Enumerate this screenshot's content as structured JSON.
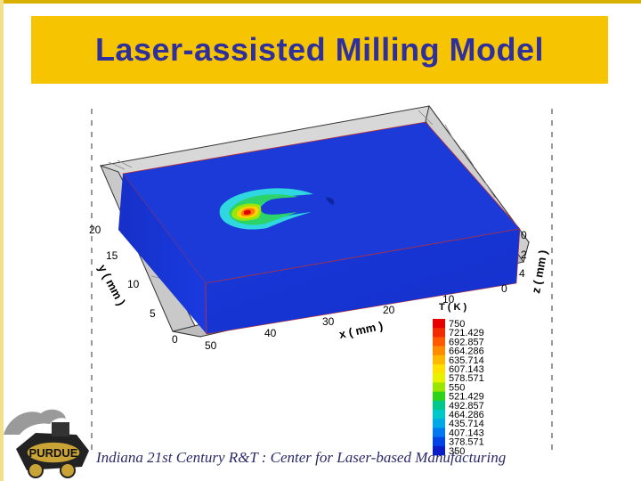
{
  "slide": {
    "title": "Laser-assisted Milling Model",
    "footer": "Indiana 21st Century R&T : Center for Laser-based Manufacturing"
  },
  "logo": {
    "text": "PURDUE",
    "icon": "purdue-train-logo"
  },
  "chart_data": {
    "type": "3d-contour",
    "x_axis": {
      "label": "x ( mm )",
      "ticks": [
        "50",
        "40",
        "30",
        "20",
        "10",
        "0"
      ]
    },
    "y_axis": {
      "label": "y ( mm )",
      "ticks": [
        "0",
        "5",
        "10",
        "15",
        "20"
      ]
    },
    "z_axis": {
      "label": "z ( mm )",
      "ticks": [
        "0",
        "2",
        "4"
      ]
    },
    "legend": {
      "title": "T ( K )",
      "levels": [
        "750",
        "721.429",
        "692.857",
        "664.286",
        "635.714",
        "607.143",
        "578.571",
        "550",
        "521.429",
        "492.857",
        "464.286",
        "435.714",
        "407.143",
        "378.571",
        "350"
      ],
      "colors": [
        "#e60000",
        "#f22c00",
        "#ff5a00",
        "#ff8c00",
        "#ffb800",
        "#ffe000",
        "#e6f200",
        "#9ae600",
        "#2fd21a",
        "#00c88c",
        "#00c8c8",
        "#00a8e6",
        "#0078f0",
        "#0046e6",
        "#0a1ec8"
      ]
    },
    "block_color": "#1a34d6"
  }
}
